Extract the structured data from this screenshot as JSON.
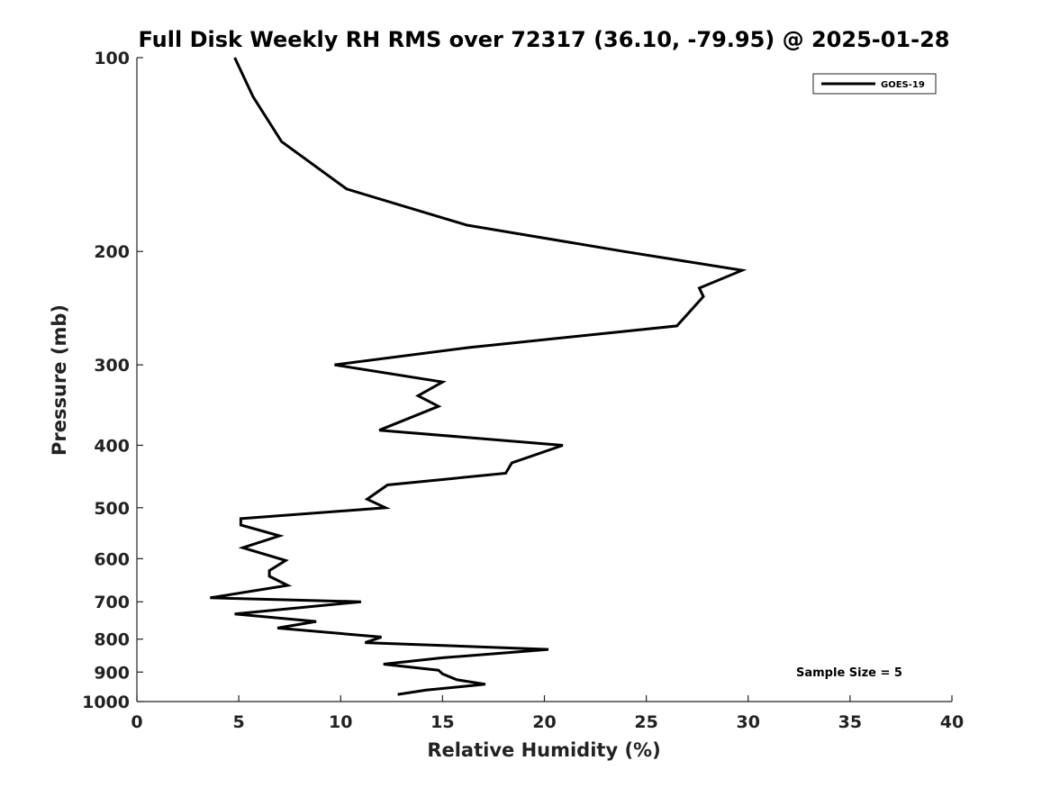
{
  "chart_data": {
    "type": "line",
    "title": "Full Disk Weekly RH RMS over 72317 (36.10, -79.95) @ 2025-01-28",
    "xlabel": "Relative Humidity (%)",
    "ylabel": "Pressure (mb)",
    "xlim": [
      0,
      40
    ],
    "ylim": [
      100,
      1000
    ],
    "y_scale": "log",
    "y_inverted": true,
    "x_ticks": [
      0,
      5,
      10,
      15,
      20,
      25,
      30,
      35,
      40
    ],
    "y_ticks": [
      100,
      200,
      300,
      400,
      500,
      600,
      700,
      800,
      900,
      1000
    ],
    "grid": false,
    "legend_position": "top-right",
    "annotation": "Sample Size = 5",
    "series": [
      {
        "name": "GOES-19",
        "color": "#000000",
        "points": [
          [
            4.8,
            100
          ],
          [
            5.7,
            115
          ],
          [
            7.1,
            135
          ],
          [
            10.3,
            160
          ],
          [
            16.2,
            182
          ],
          [
            23.9,
            200
          ],
          [
            29.7,
            214
          ],
          [
            27.6,
            228
          ],
          [
            27.8,
            235
          ],
          [
            26.5,
            261
          ],
          [
            16.3,
            282
          ],
          [
            9.7,
            300
          ],
          [
            15.0,
            319
          ],
          [
            13.8,
            335
          ],
          [
            14.8,
            348
          ],
          [
            11.9,
            379
          ],
          [
            20.9,
            400
          ],
          [
            18.4,
            426
          ],
          [
            18.1,
            442
          ],
          [
            12.3,
            461
          ],
          [
            11.3,
            485
          ],
          [
            12.2,
            500
          ],
          [
            5.1,
            520
          ],
          [
            5.1,
            532
          ],
          [
            7.0,
            553
          ],
          [
            5.2,
            577
          ],
          [
            7.3,
            604
          ],
          [
            6.5,
            626
          ],
          [
            6.5,
            639
          ],
          [
            7.4,
            660
          ],
          [
            3.6,
            690
          ],
          [
            11.0,
            700
          ],
          [
            4.8,
            731
          ],
          [
            8.8,
            751
          ],
          [
            6.9,
            769
          ],
          [
            12.0,
            794
          ],
          [
            11.2,
            810
          ],
          [
            20.2,
            830
          ],
          [
            15.0,
            855
          ],
          [
            12.1,
            875
          ],
          [
            14.8,
            894
          ],
          [
            15.0,
            906
          ],
          [
            15.7,
            925
          ],
          [
            17.1,
            940
          ],
          [
            14.2,
            960
          ],
          [
            12.8,
            975
          ]
        ]
      }
    ]
  }
}
